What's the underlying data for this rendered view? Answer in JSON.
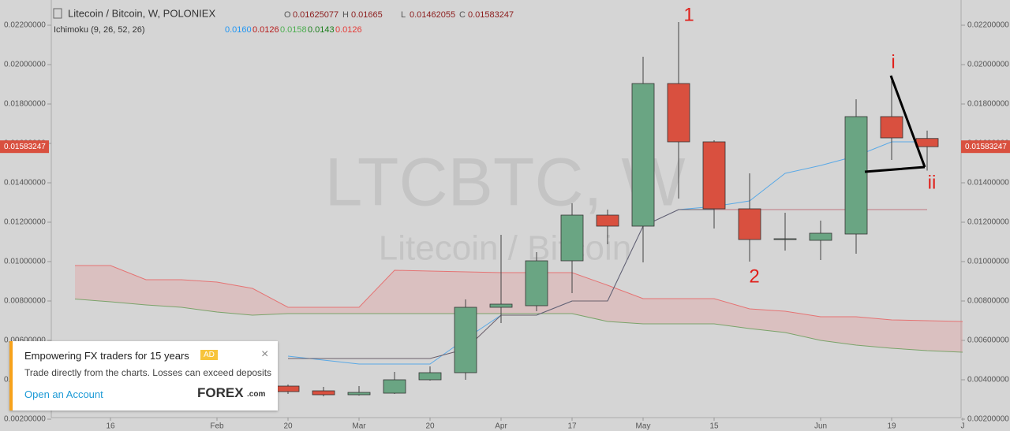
{
  "chart_data": {
    "type": "candlestick",
    "title": "Litecoin / Bitcoin, W, POLONIEX",
    "ohlc_letters": [
      "O",
      "H",
      "L",
      "C"
    ],
    "watermark": "LTCBTC, W",
    "watermark_subtitle": "Litecoin / Bitcoin",
    "indicator": "Ichimoku (9, 26, 52, 26)",
    "indicator_values": [
      {
        "value": 0.016,
        "label": "0.0160",
        "color": "#2196f3"
      },
      {
        "value": 0.0126,
        "label": "0.0126",
        "color": "#b71c1c"
      },
      {
        "value": 0.0158,
        "label": "0.0158",
        "color": "#4caf50"
      },
      {
        "value": 0.0143,
        "label": "0.0143",
        "color": "#1b7e1b"
      },
      {
        "value": 0.0126,
        "label": "0.0126",
        "color": "#e53935"
      }
    ],
    "categories": [
      null,
      "16",
      null,
      null,
      "Feb",
      null,
      "20",
      null,
      "Mar",
      null,
      "20",
      null,
      "Apr",
      null,
      "17",
      null,
      "May",
      null,
      "15",
      null,
      null,
      "Jun",
      null,
      "19",
      null,
      "J"
    ],
    "open": [
      null,
      null,
      null,
      null,
      null,
      null,
      0.00368,
      0.00344,
      0.00324,
      0.00332,
      0.004,
      0.00436,
      0.00768,
      0.00776,
      0.01004,
      0.01236,
      0.0118,
      0.01904,
      0.01608,
      0.01268,
      0.01112,
      0.01108,
      0.0114,
      0.01736,
      0.01625077,
      null
    ],
    "high": [
      null,
      null,
      null,
      null,
      null,
      null,
      0.00376,
      0.00364,
      0.00368,
      0.0044,
      0.00468,
      0.00808,
      0.01136,
      0.01048,
      0.01296,
      0.01264,
      0.0204,
      0.02216,
      0.01616,
      0.01448,
      0.01248,
      0.01208,
      0.01824,
      0.01936,
      0.01665,
      null
    ],
    "low": [
      null,
      null,
      null,
      null,
      null,
      null,
      0.00328,
      0.00316,
      0.0032,
      0.00328,
      0.00396,
      0.004,
      0.00688,
      0.00748,
      0.0084,
      0.01088,
      0.00996,
      0.0132,
      0.01168,
      0.01,
      0.01056,
      0.01008,
      0.0104,
      0.01516,
      0.01462055,
      null
    ],
    "close": [
      null,
      null,
      null,
      null,
      null,
      null,
      0.0034,
      0.00324,
      0.00336,
      0.004,
      0.00436,
      0.00768,
      0.00784,
      0.01004,
      0.01236,
      0.0118,
      0.01904,
      0.01608,
      0.01268,
      0.01112,
      0.01116,
      0.01144,
      0.01736,
      0.01628,
      0.01583247,
      null
    ],
    "up_color": "#6aa583",
    "down_color": "#d9503f",
    "cloud": {
      "upper_color": "#e57373",
      "lower_color": "#7aa36a",
      "fill": "rgba(235,140,140,0.28)",
      "upper": [
        0.0098,
        0.0098,
        0.00908,
        0.00908,
        0.00896,
        0.00864,
        0.00768,
        0.00768,
        0.00768,
        0.00956,
        0.00952,
        0.00948,
        0.00944,
        0.00944,
        0.00944,
        0.0088,
        0.00812,
        0.00812,
        0.00812,
        0.0076,
        0.00748,
        0.0072,
        0.0072,
        0.00704,
        0.007,
        0.00696
      ],
      "lower": [
        0.0081,
        0.00796,
        0.0078,
        0.00768,
        0.00744,
        0.00728,
        0.00736,
        0.00736,
        0.00736,
        0.00736,
        0.00736,
        0.00736,
        0.00736,
        0.00736,
        0.00736,
        0.00696,
        0.00684,
        0.00684,
        0.00684,
        0.0066,
        0.0064,
        0.006,
        0.00576,
        0.0056,
        0.00548,
        0.0054
      ]
    },
    "lines": [
      {
        "color": "#5aa9e6",
        "values": [
          null,
          null,
          null,
          null,
          null,
          null,
          0.0052,
          0.005,
          0.0048,
          0.0048,
          0.0048,
          0.00608,
          0.00728,
          0.00728,
          0.008,
          0.008,
          0.0118,
          0.01264,
          0.0128,
          0.01308,
          0.01448,
          0.01488,
          0.01536,
          0.01608,
          0.01608,
          null
        ]
      },
      {
        "color": "#6b5f6b",
        "values": [
          null,
          null,
          null,
          null,
          null,
          null,
          0.00508,
          0.00508,
          0.00508,
          0.00508,
          0.00508,
          0.00556,
          0.00728,
          0.00728,
          0.008,
          0.008,
          0.0118,
          0.01264,
          0.01264,
          0.01264,
          0.01264,
          0.01264,
          0.01264,
          0.01264,
          0.01264,
          null
        ]
      },
      {
        "color": "#c0787f",
        "values": [
          null,
          null,
          null,
          null,
          null,
          null,
          null,
          null,
          null,
          null,
          null,
          null,
          null,
          null,
          null,
          null,
          null,
          null,
          0.01264,
          0.01264,
          0.01264,
          0.01264,
          0.01264,
          0.01264,
          0.01264,
          null
        ]
      }
    ],
    "ylim": [
      0.00216,
      0.02328
    ],
    "yticks": [
      {
        "value": 0.002,
        "label": "0.00200000"
      },
      {
        "value": 0.004,
        "label": "0.00400000"
      },
      {
        "value": 0.006,
        "label": "0.00600000"
      },
      {
        "value": 0.008,
        "label": "0.00800000"
      },
      {
        "value": 0.01,
        "label": "0.01000000"
      },
      {
        "value": 0.012,
        "label": "0.01200000"
      },
      {
        "value": 0.014,
        "label": "0.01400000"
      },
      {
        "value": 0.016,
        "label": "0.01600000"
      },
      {
        "value": 0.018,
        "label": "0.01800000"
      },
      {
        "value": 0.02,
        "label": "0.02000000"
      },
      {
        "value": 0.022,
        "label": "0.02200000"
      }
    ],
    "grid": false,
    "annotations": [
      "1",
      "2",
      "i",
      "ii"
    ]
  },
  "ad": {
    "title": "Empowering FX traders for 15 years",
    "badge": "AD",
    "text": "Trade directly from the charts. Losses can exceed deposits",
    "link": "Open an Account",
    "logo": "FOREX",
    "logo_suffix": ".com",
    "close": "×"
  }
}
